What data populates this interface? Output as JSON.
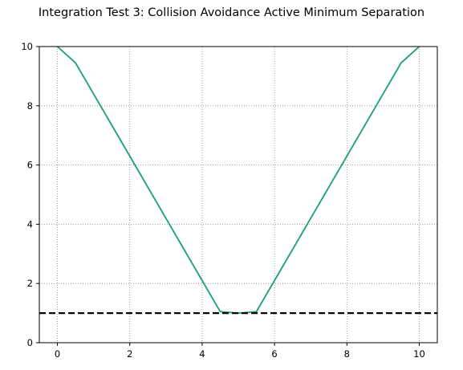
{
  "chart_data": {
    "type": "line",
    "title": "Integration Test 3: Collision Avoidance Active Minimum Separation",
    "xlabel": "",
    "ylabel": "",
    "xlim": [
      -0.5,
      10.5
    ],
    "ylim": [
      0,
      10
    ],
    "xticks": [
      0,
      2,
      4,
      6,
      8,
      10
    ],
    "yticks": [
      0,
      2,
      4,
      6,
      8,
      10
    ],
    "grid": true,
    "series": [
      {
        "color": "#1b9e77",
        "x": [
          0,
          0.5,
          4.5,
          5.0,
          5.5,
          9.5,
          10
        ],
        "y": [
          10,
          9.45,
          1.05,
          1.0,
          1.05,
          9.45,
          10
        ]
      }
    ],
    "threshold": {
      "y": 1.0,
      "color": "#000000",
      "style": "dashed"
    }
  }
}
